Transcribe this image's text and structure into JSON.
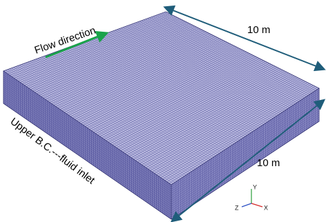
{
  "annotations": {
    "flow": "Flow direction",
    "dim_top": "10 m",
    "dim_right": "10 m",
    "boundary": "Upper B.C.---fluid inlet"
  },
  "axes": {
    "y": "Y",
    "z": "Z",
    "x": "X"
  }
}
